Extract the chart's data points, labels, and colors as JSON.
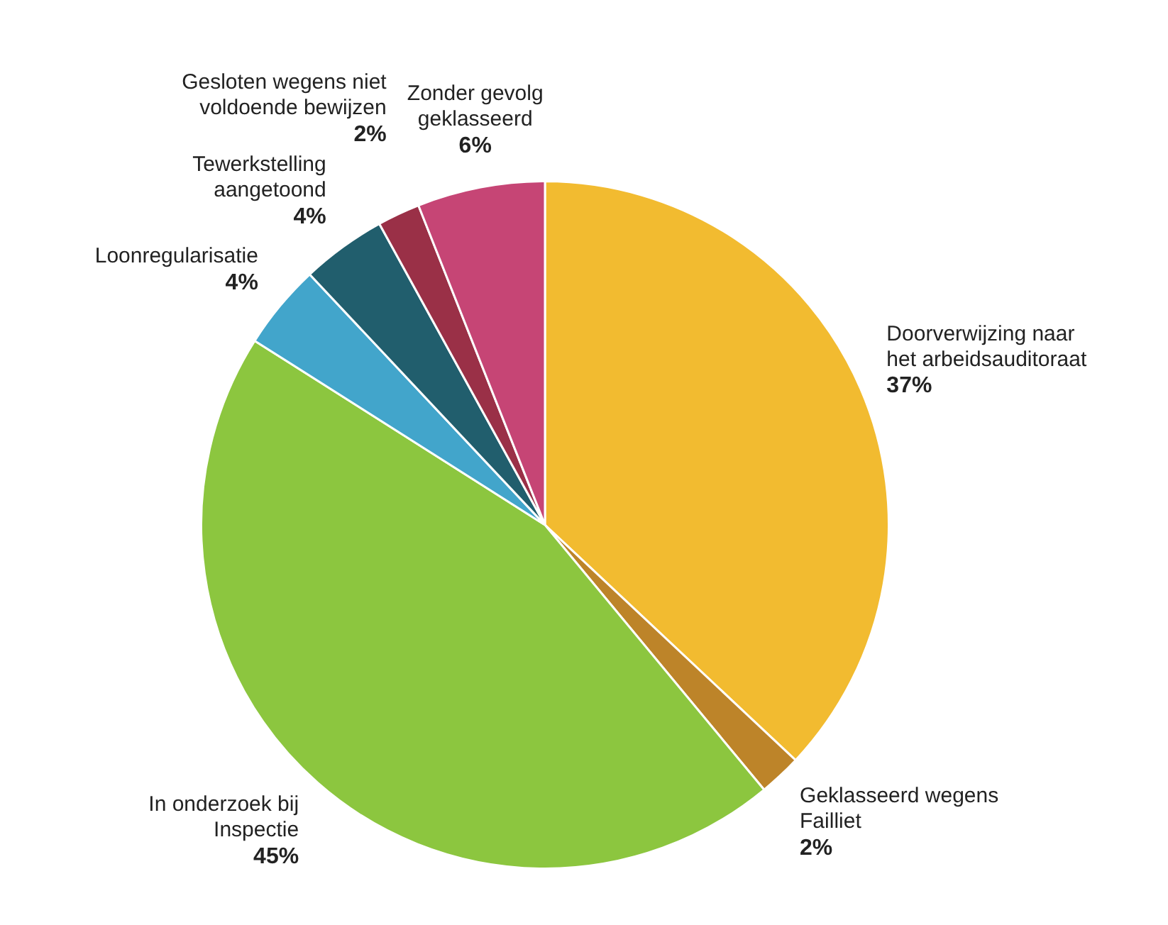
{
  "chart_data": {
    "type": "pie",
    "categories": [
      "Doorverwijzing naar het arbeidsauditoraat",
      "Geklasseerd wegens Failliet",
      "In onderzoek bij Inspectie",
      "Loonregularisatie",
      "Tewerkstelling aangetoond",
      "Gesloten wegens niet voldoende bewijzen",
      "Zonder gevolg geklasseerd"
    ],
    "values": [
      37,
      2,
      45,
      4,
      4,
      2,
      6
    ],
    "value_labels": [
      "37%",
      "2%",
      "45%",
      "4%",
      "4%",
      "2%",
      "6%"
    ],
    "colors": [
      "#f2bb30",
      "#bd8429",
      "#8cc63f",
      "#42a5cb",
      "#215e6d",
      "#9a3047",
      "#c64575"
    ],
    "legend": false
  }
}
